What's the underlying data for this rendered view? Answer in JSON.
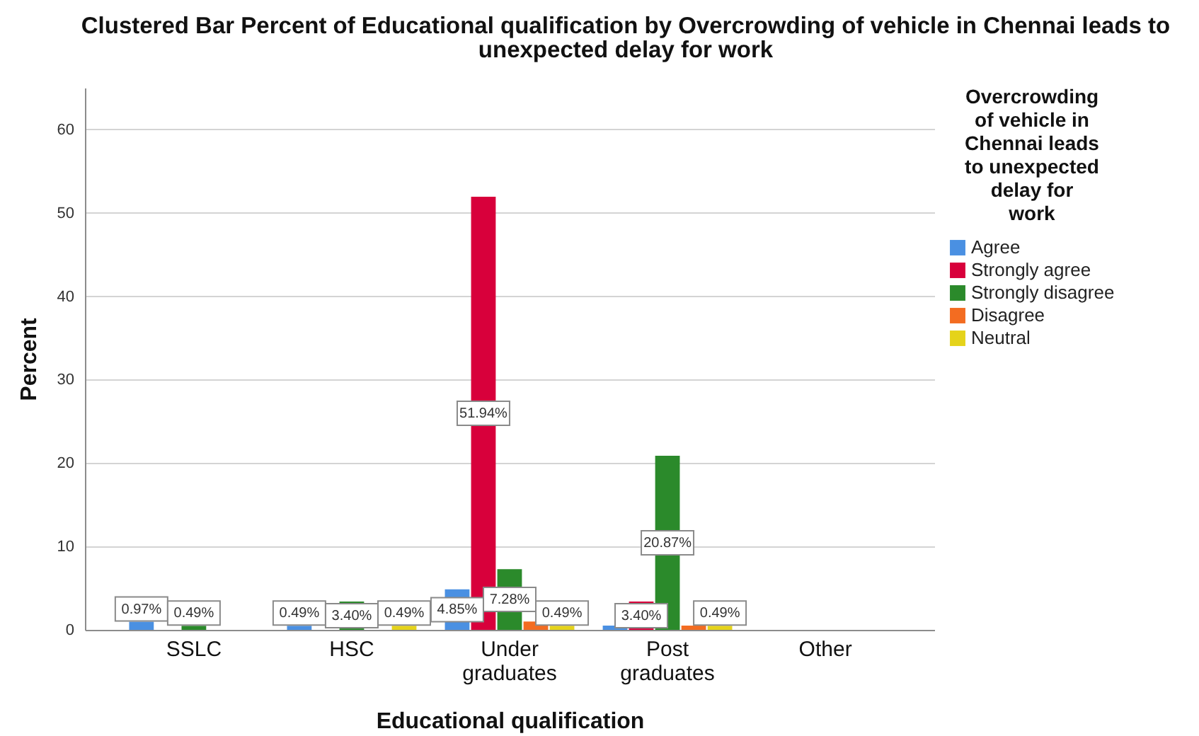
{
  "chart_data": {
    "type": "bar",
    "title": "Clustered Bar Percent of Educational qualification by Overcrowding of vehicle in Chennai leads to unexpected delay for work",
    "xlabel": "Educational qualification",
    "ylabel": "Percent",
    "legend_title": "Overcrowding of vehicle in Chennai leads to unexpected delay for work",
    "categories": [
      "SSLC",
      "HSC",
      "Under graduates",
      "Post graduates",
      "Other"
    ],
    "series": [
      {
        "name": "Agree",
        "color": "#4a90e2",
        "values": [
          0.97,
          0.49,
          4.85,
          0.5,
          null
        ],
        "value_labels": [
          "0.97%",
          "0.49%",
          "4.85%",
          null,
          null
        ]
      },
      {
        "name": "Strongly agree",
        "color": "#d8003b",
        "values": [
          null,
          null,
          51.94,
          3.4,
          null
        ],
        "value_labels": [
          null,
          null,
          "51.94%",
          "3.40%",
          null
        ]
      },
      {
        "name": "Strongly disagree",
        "color": "#2b8a2b",
        "values": [
          0.49,
          3.4,
          7.28,
          20.87,
          null
        ],
        "value_labels": [
          "0.49%",
          "3.40%",
          "7.28%",
          "20.87%",
          null
        ]
      },
      {
        "name": "Disagree",
        "color": "#f36c21",
        "values": [
          null,
          null,
          1,
          0.5,
          null
        ]
      },
      {
        "name": "Neutral",
        "color": "#e5d31a",
        "values": [
          null,
          0.49,
          0.49,
          0.49,
          null
        ],
        "value_labels": [
          null,
          "0.49%",
          "0.49%",
          "0.49%",
          null
        ]
      }
    ],
    "ylim": [
      0,
      65
    ],
    "yticks": [
      0,
      10,
      20,
      30,
      40,
      50,
      60
    ],
    "grid": "y",
    "legend": "right"
  }
}
